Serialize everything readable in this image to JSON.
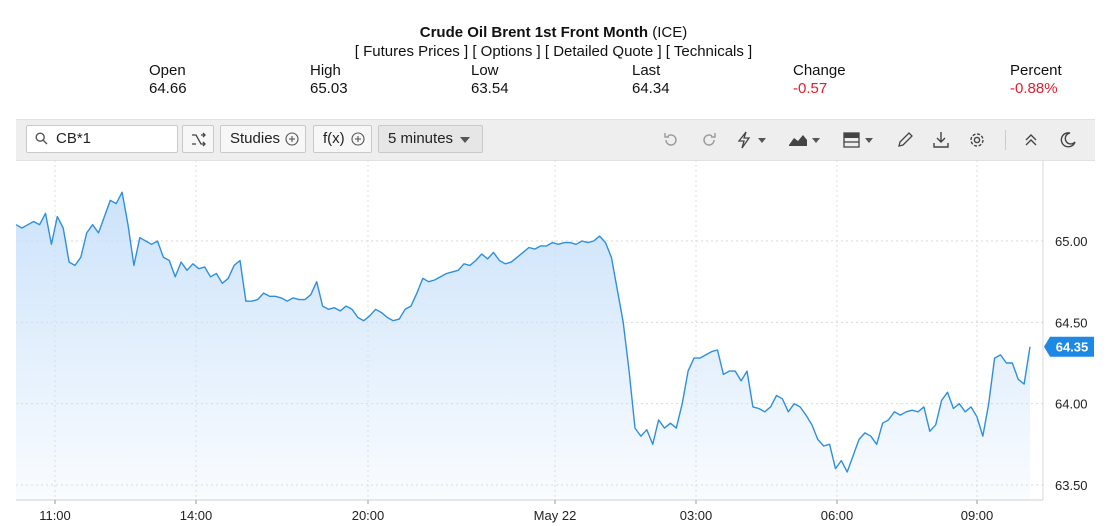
{
  "header": {
    "title": "Crude Oil Brent 1st Front Month",
    "exchange": "(ICE)",
    "links": [
      "[ Futures Prices ]",
      "[ Options ]",
      "[ Detailed Quote ]",
      "[ Technicals ]"
    ]
  },
  "quote": {
    "open_label": "Open",
    "open": "64.66",
    "high_label": "High",
    "high": "65.03",
    "low_label": "Low",
    "low": "63.54",
    "last_label": "Last",
    "last": "64.34",
    "change_label": "Change",
    "change": "-0.57",
    "percent_label": "Percent",
    "percent": "-0.88%",
    "negative_color": "#e0202e"
  },
  "toolbar": {
    "symbol": "CB*1",
    "studies_label": "Studies",
    "fx_label": "f(x)",
    "interval_label": "5 minutes",
    "icons": [
      "search-icon",
      "shuffle-icon",
      "plus-circle-icon",
      "chevron-down-icon",
      "undo-icon",
      "redo-icon",
      "lightning-icon",
      "area-chart-icon",
      "layout-icon",
      "pencil-icon",
      "download-icon",
      "gear-icon",
      "collapse-icon",
      "moon-icon"
    ]
  },
  "chart_data": {
    "type": "area",
    "title": "",
    "xlabel": "",
    "ylabel": "",
    "y_axis_position": "right",
    "ylim": [
      63.4,
      65.5
    ],
    "yticks": [
      "65.00",
      "64.50",
      "64.00",
      "63.50"
    ],
    "xticks": [
      "11:00",
      "14:00",
      "20:00",
      "May 22",
      "03:00",
      "06:00",
      "09:00"
    ],
    "grid": true,
    "line_color": "#2f8fdf",
    "fill_color": "#cfe5fb",
    "last_price_label": "64.35",
    "series": [
      {
        "name": "",
        "values": [
          65.1,
          65.08,
          65.1,
          65.12,
          65.1,
          65.17,
          64.98,
          65.15,
          65.08,
          64.87,
          64.85,
          64.9,
          65.05,
          65.1,
          65.05,
          65.15,
          65.25,
          65.23,
          65.3,
          65.1,
          64.85,
          65.02,
          65.0,
          64.98,
          65.0,
          64.9,
          64.88,
          64.78,
          64.87,
          64.82,
          64.86,
          64.83,
          64.84,
          64.78,
          64.8,
          64.74,
          64.77,
          64.85,
          64.88,
          64.63,
          64.63,
          64.64,
          64.68,
          64.66,
          64.66,
          64.65,
          64.63,
          64.65,
          64.64,
          64.64,
          64.67,
          64.75,
          64.6,
          64.58,
          64.59,
          64.57,
          64.6,
          64.58,
          64.53,
          64.51,
          64.54,
          64.58,
          64.56,
          64.53,
          64.51,
          64.52,
          64.58,
          64.6,
          64.68,
          64.77,
          64.75,
          64.76,
          64.78,
          64.8,
          64.81,
          64.82,
          64.86,
          64.85,
          64.88,
          64.92,
          64.89,
          64.93,
          64.88,
          64.86,
          64.87,
          64.9,
          64.93,
          64.96,
          64.95,
          64.97,
          64.97,
          64.99,
          64.98,
          64.99,
          64.99,
          64.98,
          65.0,
          64.99,
          65.0,
          65.03,
          64.99,
          64.9,
          64.7,
          64.5,
          64.2,
          63.85,
          63.8,
          63.84,
          63.75,
          63.9,
          63.85,
          63.88,
          63.85,
          64.0,
          64.2,
          64.28,
          64.28,
          64.3,
          64.32,
          64.33,
          64.18,
          64.2,
          64.2,
          64.14,
          64.2,
          63.98,
          63.97,
          63.95,
          63.98,
          64.05,
          64.03,
          63.95,
          64.0,
          63.98,
          63.93,
          63.87,
          63.78,
          63.74,
          63.75,
          63.6,
          63.65,
          63.58,
          63.68,
          63.78,
          63.82,
          63.8,
          63.75,
          63.88,
          63.9,
          63.95,
          63.93,
          63.95,
          63.96,
          63.95,
          63.98,
          63.83,
          63.87,
          64.02,
          64.07,
          63.97,
          64.0,
          63.95,
          63.98,
          63.92,
          63.8,
          64.0,
          64.28,
          64.3,
          64.25,
          64.25,
          64.15,
          64.12,
          64.35
        ]
      }
    ]
  }
}
